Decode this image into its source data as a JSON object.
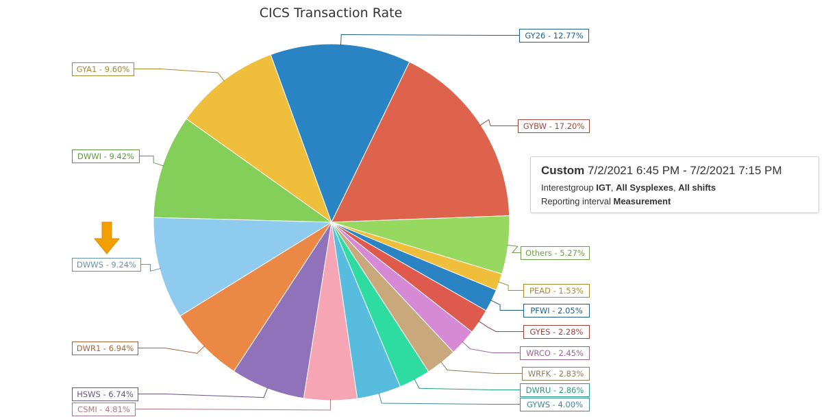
{
  "chart_data": {
    "type": "pie",
    "title": "CICS Transaction Rate",
    "slices": [
      {
        "label": "GY26 - 12.77%",
        "name": "GY26",
        "value": 12.77,
        "color": "#2a83c2"
      },
      {
        "label": "GYBW - 17.20%",
        "name": "GYBW",
        "value": 17.2,
        "color": "#dd634c"
      },
      {
        "label": "Others - 5.27%",
        "name": "Others",
        "value": 5.27,
        "color": "#97d860"
      },
      {
        "label": "PEAD - 1.53%",
        "name": "PEAD",
        "value": 1.53,
        "color": "#efbf3c"
      },
      {
        "label": "PFWI - 2.05%",
        "name": "PFWI",
        "value": 2.05,
        "color": "#2a83c2"
      },
      {
        "label": "GYES - 2.28%",
        "name": "GYES",
        "value": 2.28,
        "color": "#dd5a4c"
      },
      {
        "label": "WRCO - 2.45%",
        "name": "WRCO",
        "value": 2.45,
        "color": "#d68ad6"
      },
      {
        "label": "WRFK - 2.83%",
        "name": "WRFK",
        "value": 2.83,
        "color": "#c9a97c"
      },
      {
        "label": "DWRU - 2.86%",
        "name": "DWRU",
        "value": 2.86,
        "color": "#2edba1"
      },
      {
        "label": "GYWS - 4.00%",
        "name": "GYWS",
        "value": 4.0,
        "color": "#57bcde"
      },
      {
        "label": "CSMI - 4.81%",
        "name": "CSMI",
        "value": 4.81,
        "color": "#f5a5b4"
      },
      {
        "label": "HSWS - 6.74%",
        "name": "HSWS",
        "value": 6.74,
        "color": "#8f72ba"
      },
      {
        "label": "DWR1 - 6.94%",
        "name": "DWR1",
        "value": 6.94,
        "color": "#ec8845"
      },
      {
        "label": "DWWS - 9.24%",
        "name": "DWWS",
        "value": 9.24,
        "color": "#8ecbef"
      },
      {
        "label": "DWWI - 9.42%",
        "name": "DWWI",
        "value": 9.42,
        "color": "#83cf5a"
      },
      {
        "label": "GYA1 - 9.60%",
        "name": "GYA1",
        "value": 9.6,
        "color": "#efbf3c"
      }
    ],
    "highlighted_slice": "DWWS",
    "highlight_marker": "down-arrow-icon",
    "highlight_color": "#f2a000"
  },
  "info_box": {
    "period_type": "Custom",
    "period_range": "7/2/2021 6:45 PM - 7/2/2021 7:15 PM",
    "line2_prefix": "Interestgroup ",
    "interest_group": "IGT",
    "line2_sep1": ", ",
    "sysplexes": "All Sysplexes",
    "line2_sep2": ", ",
    "shifts": "All shifts",
    "line3_prefix": "Reporting interval ",
    "interval": "Measurement"
  }
}
